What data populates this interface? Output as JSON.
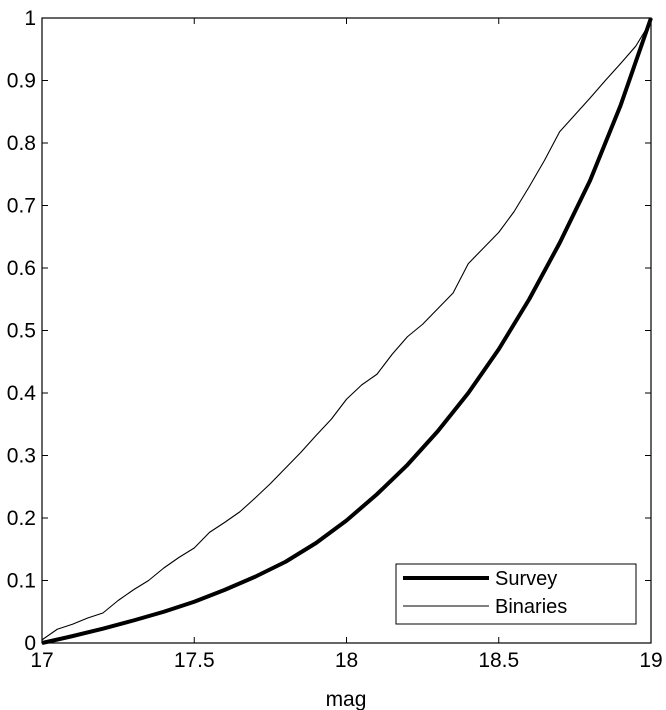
{
  "chart_data": {
    "type": "line",
    "title": "",
    "xlabel": "mag",
    "ylabel": "",
    "xlim": [
      17,
      19
    ],
    "ylim": [
      0,
      1
    ],
    "xticks": [
      17,
      17.5,
      18,
      18.5,
      19
    ],
    "xtick_labels": [
      "17",
      "17.5",
      "18",
      "18.5",
      "19"
    ],
    "yticks": [
      0,
      0.1,
      0.2,
      0.3,
      0.4,
      0.5,
      0.6,
      0.7,
      0.8,
      0.9,
      1
    ],
    "ytick_labels": [
      "0",
      "0.1",
      "0.2",
      "0.3",
      "0.4",
      "0.5",
      "0.6",
      "0.7",
      "0.8",
      "0.9",
      "1"
    ],
    "grid": false,
    "legend_position": "bottom-right",
    "series": [
      {
        "name": "Survey",
        "color": "#000000",
        "x": [
          17,
          17.1,
          17.2,
          17.3,
          17.4,
          17.5,
          17.6,
          17.7,
          17.8,
          17.9,
          18,
          18.1,
          18.2,
          18.3,
          18.4,
          18.5,
          18.6,
          18.7,
          18.8,
          18.9,
          19
        ],
        "y": [
          0,
          0.011,
          0.023,
          0.036,
          0.05,
          0.066,
          0.085,
          0.106,
          0.13,
          0.16,
          0.196,
          0.238,
          0.285,
          0.339,
          0.4,
          0.47,
          0.55,
          0.64,
          0.74,
          0.86,
          1
        ]
      },
      {
        "name": "Binaries",
        "color": "#000000",
        "x": [
          17,
          17.05,
          17.1,
          17.15,
          17.2,
          17.25,
          17.3,
          17.35,
          17.4,
          17.45,
          17.5,
          17.55,
          17.6,
          17.65,
          17.7,
          17.75,
          17.8,
          17.85,
          17.9,
          17.95,
          18,
          18.05,
          18.1,
          18.15,
          18.2,
          18.25,
          18.3,
          18.35,
          18.4,
          18.45,
          18.5,
          18.55,
          18.6,
          18.65,
          18.7,
          18.75,
          18.8,
          18.85,
          18.9,
          18.95,
          19
        ],
        "y": [
          0.005,
          0.022,
          0.03,
          0.04,
          0.048,
          0.068,
          0.085,
          0.1,
          0.12,
          0.137,
          0.152,
          0.177,
          0.193,
          0.21,
          0.232,
          0.255,
          0.28,
          0.305,
          0.332,
          0.358,
          0.39,
          0.413,
          0.43,
          0.462,
          0.49,
          0.51,
          0.535,
          0.56,
          0.607,
          0.632,
          0.657,
          0.69,
          0.73,
          0.772,
          0.818,
          0.845,
          0.872,
          0.9,
          0.927,
          0.955,
          0.995
        ]
      }
    ]
  }
}
